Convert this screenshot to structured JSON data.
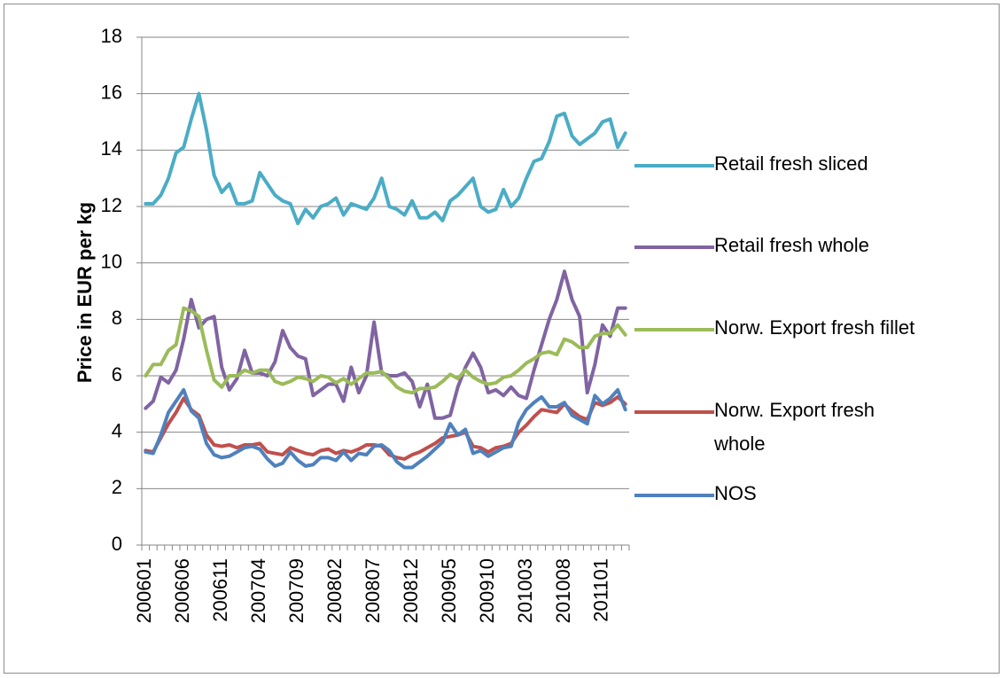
{
  "chart_data": {
    "type": "line",
    "y_label": "Price in EUR per kg",
    "categories": [
      "200601",
      null,
      null,
      null,
      null,
      "200606",
      null,
      null,
      null,
      null,
      "200611",
      null,
      null,
      null,
      null,
      "200704",
      null,
      null,
      null,
      null,
      "200709",
      null,
      null,
      null,
      null,
      "200802",
      null,
      null,
      null,
      null,
      "200807",
      null,
      null,
      null,
      null,
      "200812",
      null,
      null,
      null,
      null,
      "200905",
      null,
      null,
      null,
      null,
      "200910",
      null,
      null,
      null,
      null,
      "201003",
      null,
      null,
      null,
      null,
      "201008",
      null,
      null,
      null,
      null,
      "201101",
      null,
      null,
      null
    ],
    "series": [
      {
        "name": "Retail fresh sliced",
        "color": "#4bacc6",
        "values": [
          12.1,
          12.1,
          12.4,
          13.0,
          13.9,
          14.1,
          15.1,
          16.0,
          14.7,
          13.1,
          12.5,
          12.8,
          12.1,
          12.1,
          12.2,
          13.2,
          12.8,
          12.4,
          12.2,
          12.1,
          11.4,
          11.9,
          11.6,
          12.0,
          12.1,
          12.3,
          11.7,
          12.1,
          12.0,
          11.9,
          12.3,
          13.0,
          12.0,
          11.9,
          11.7,
          12.2,
          11.6,
          11.6,
          11.8,
          11.5,
          12.2,
          12.4,
          12.7,
          13.0,
          12.0,
          11.8,
          11.9,
          12.6,
          12.0,
          12.3,
          13.0,
          13.6,
          13.7,
          14.3,
          15.2,
          15.3,
          14.5,
          14.2,
          14.4,
          14.6,
          15.0,
          15.1,
          14.1,
          14.6
        ]
      },
      {
        "name": "Retail fresh whole",
        "color": "#8064a2",
        "values": [
          4.85,
          5.1,
          5.95,
          5.75,
          6.2,
          7.3,
          8.7,
          7.7,
          8.0,
          8.1,
          6.3,
          5.5,
          5.9,
          6.9,
          6.1,
          6.1,
          6.0,
          6.5,
          7.6,
          7.0,
          6.7,
          6.6,
          5.3,
          5.5,
          5.7,
          5.7,
          5.1,
          6.3,
          5.4,
          6.0,
          7.9,
          6.1,
          6.0,
          6.0,
          6.1,
          5.8,
          4.9,
          5.7,
          4.5,
          4.5,
          4.6,
          5.6,
          6.3,
          6.8,
          6.3,
          5.4,
          5.5,
          5.3,
          5.6,
          5.3,
          5.2,
          6.2,
          7.1,
          8.0,
          8.7,
          9.7,
          8.7,
          8.1,
          5.4,
          6.4,
          7.8,
          7.4,
          8.4,
          8.4
        ]
      },
      {
        "name": "Norw. Export fresh fillet",
        "color": "#9bbb59",
        "values": [
          6.0,
          6.4,
          6.4,
          6.9,
          7.1,
          8.4,
          8.3,
          8.1,
          6.9,
          5.85,
          5.6,
          6.0,
          6.0,
          6.2,
          6.1,
          6.2,
          6.2,
          5.8,
          5.7,
          5.8,
          5.95,
          5.9,
          5.8,
          6.0,
          5.95,
          5.75,
          5.9,
          5.7,
          5.9,
          6.1,
          6.1,
          6.15,
          5.9,
          5.6,
          5.45,
          5.4,
          5.55,
          5.55,
          5.6,
          5.8,
          6.05,
          5.9,
          6.2,
          5.95,
          5.8,
          5.7,
          5.75,
          5.95,
          6.0,
          6.2,
          6.45,
          6.6,
          6.8,
          6.85,
          6.75,
          7.3,
          7.2,
          7.0,
          7.0,
          7.4,
          7.5,
          7.5,
          7.8,
          7.45
        ]
      },
      {
        "name": "Norw. Export fresh whole",
        "color": "#c0504d",
        "values": [
          3.35,
          3.3,
          3.8,
          4.3,
          4.7,
          5.2,
          4.8,
          4.6,
          3.9,
          3.55,
          3.5,
          3.55,
          3.45,
          3.55,
          3.55,
          3.6,
          3.3,
          3.25,
          3.2,
          3.45,
          3.35,
          3.25,
          3.2,
          3.35,
          3.4,
          3.25,
          3.35,
          3.3,
          3.4,
          3.55,
          3.55,
          3.5,
          3.2,
          3.1,
          3.05,
          3.2,
          3.3,
          3.45,
          3.6,
          3.8,
          3.85,
          3.9,
          4.0,
          3.5,
          3.45,
          3.3,
          3.45,
          3.5,
          3.6,
          4.0,
          4.25,
          4.55,
          4.8,
          4.75,
          4.7,
          5.0,
          4.75,
          4.55,
          4.45,
          5.05,
          4.95,
          5.05,
          5.25,
          5.0
        ]
      },
      {
        "name": "NOS",
        "color": "#4f81bd",
        "values": [
          3.3,
          3.25,
          3.9,
          4.7,
          5.1,
          5.5,
          4.75,
          4.5,
          3.6,
          3.2,
          3.1,
          3.15,
          3.3,
          3.45,
          3.5,
          3.4,
          3.05,
          2.8,
          2.9,
          3.3,
          3.0,
          2.8,
          2.85,
          3.1,
          3.1,
          3.0,
          3.3,
          3.0,
          3.25,
          3.2,
          3.5,
          3.55,
          3.35,
          2.95,
          2.75,
          2.75,
          2.95,
          3.15,
          3.4,
          3.65,
          4.3,
          3.9,
          4.1,
          3.25,
          3.35,
          3.15,
          3.3,
          3.45,
          3.5,
          4.35,
          4.8,
          5.05,
          5.25,
          4.9,
          4.9,
          5.05,
          4.6,
          4.45,
          4.3,
          5.3,
          5.0,
          5.2,
          5.5,
          4.8
        ]
      }
    ],
    "ylim": [
      0,
      18
    ],
    "yticks": [
      0,
      2,
      4,
      6,
      8,
      10,
      12,
      14,
      16,
      18
    ],
    "grid": true,
    "legend": "right"
  }
}
